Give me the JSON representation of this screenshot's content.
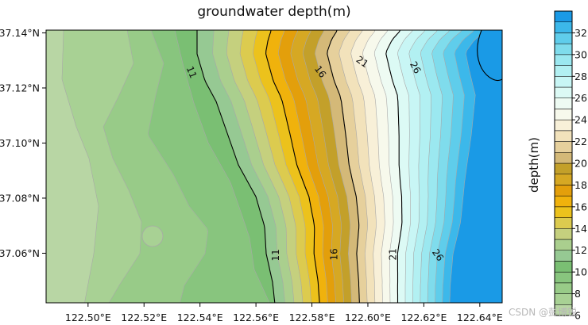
{
  "chart_data": {
    "type": "heatmap",
    "title": "groundwater depth(m)",
    "colorbar_label": "depth(m)",
    "x_tick_labels": [
      "122.50°E",
      "122.52°E",
      "122.54°E",
      "122.56°E",
      "122.58°E",
      "122.60°E",
      "122.62°E",
      "122.64°E"
    ],
    "x_ticks": [
      122.5,
      122.52,
      122.54,
      122.56,
      122.58,
      122.6,
      122.62,
      122.64
    ],
    "y_tick_labels": [
      "37.06°N",
      "37.08°N",
      "37.10°N",
      "37.12°N",
      "37.14°N"
    ],
    "y_ticks": [
      37.06,
      37.08,
      37.1,
      37.12,
      37.14
    ],
    "xlim": [
      122.485,
      122.648
    ],
    "ylim": [
      37.042,
      37.141
    ],
    "colorbar_tick_labels": [
      "6",
      "8",
      "10",
      "12",
      "14",
      "16",
      "18",
      "20",
      "22",
      "24",
      "26",
      "28",
      "30",
      "32"
    ],
    "colorbar_levels": [
      6,
      7,
      8,
      9,
      10,
      11,
      12,
      13,
      14,
      15,
      16,
      17,
      18,
      19,
      20,
      21,
      22,
      23,
      24,
      25,
      26,
      27,
      28,
      29,
      30,
      31,
      32,
      33,
      34
    ],
    "colorbar_colors": [
      "#b8d6a4",
      "#a8d194",
      "#98cb88",
      "#88c57e",
      "#7abf73",
      "#96c993",
      "#aacf8e",
      "#c5d07e",
      "#dccb4f",
      "#ecc21c",
      "#f0b20c",
      "#e39f0b",
      "#d6a823",
      "#c3a02a",
      "#d4b978",
      "#e6d09c",
      "#f2e2bb",
      "#f8f0d8",
      "#f7f9ec",
      "#eefbf3",
      "#dcfaf5",
      "#c8f6f5",
      "#b2f0f2",
      "#9be8f0",
      "#7fdcec",
      "#5fcdeb",
      "#3cb8ea",
      "#1a9ae6",
      "#0a6fe0"
    ],
    "contour_line_levels": [
      11,
      16,
      21,
      26
    ],
    "contour_labels": [
      {
        "text": "11",
        "x": 122.537,
        "y": 37.1257,
        "angle": 68
      },
      {
        "text": "11",
        "x": 122.567,
        "y": 37.0593,
        "angle": -90
      },
      {
        "text": "16",
        "x": 122.583,
        "y": 37.1259,
        "angle": 55
      },
      {
        "text": "16",
        "x": 122.588,
        "y": 37.0596,
        "angle": -90
      },
      {
        "text": "21",
        "x": 122.598,
        "y": 37.1295,
        "angle": 35
      },
      {
        "text": "21",
        "x": 122.609,
        "y": 37.0596,
        "angle": -90
      },
      {
        "text": "26",
        "x": 122.617,
        "y": 37.1274,
        "angle": 62
      },
      {
        "text": "26",
        "x": 122.625,
        "y": 37.0593,
        "angle": 55
      }
    ],
    "grid": false,
    "watermark": "CSDN @彭博锐"
  }
}
